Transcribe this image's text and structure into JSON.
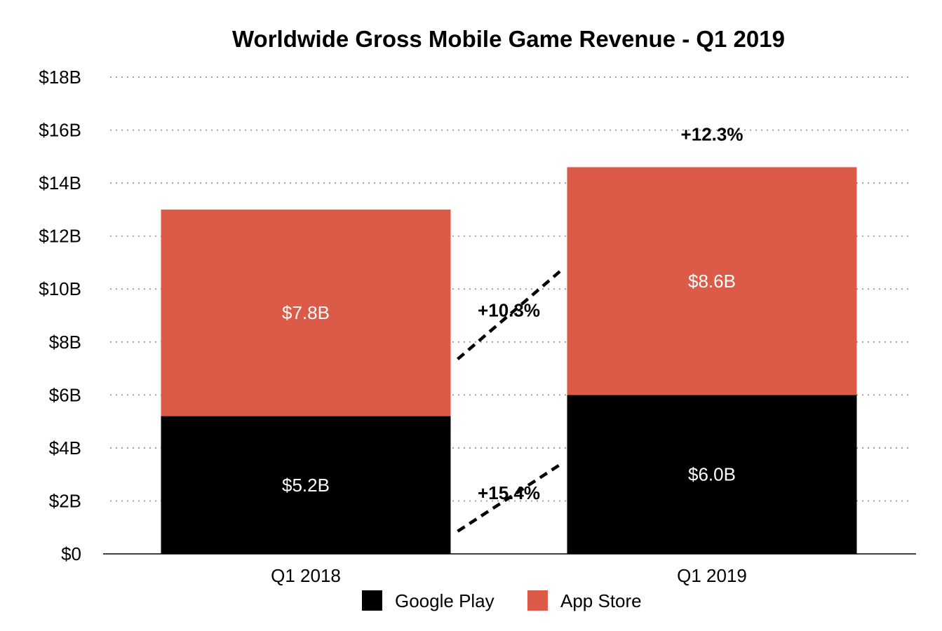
{
  "chart_data": {
    "type": "bar",
    "stacked": true,
    "title": "Worldwide Gross Mobile Game Revenue - Q1 2019",
    "xlabel": "",
    "ylabel": "",
    "categories": [
      "Q1 2018",
      "Q1 2019"
    ],
    "series": [
      {
        "name": "Google Play",
        "color": "#000000",
        "values": [
          5.2,
          6.0
        ],
        "labels": [
          "$5.2B",
          "$6.0B"
        ]
      },
      {
        "name": "App Store",
        "color": "#db5a48",
        "values": [
          7.8,
          8.6
        ],
        "labels": [
          "$7.8B",
          "$8.6B"
        ]
      }
    ],
    "ylim": [
      0,
      18
    ],
    "yticks": [
      0,
      2,
      4,
      6,
      8,
      10,
      12,
      14,
      16,
      18
    ],
    "ytick_labels": [
      "$0",
      "$2B",
      "$4B",
      "$6B",
      "$8B",
      "$10B",
      "$12B",
      "$14B",
      "$16B",
      "$18B"
    ],
    "grid": true,
    "grid_style": "dotted",
    "legend_position": "bottom-center",
    "annotations": {
      "total_growth": {
        "text": "+12.3%",
        "category": "Q1 2019"
      },
      "series_growth": [
        {
          "series": "App Store",
          "text": "+10.3%"
        },
        {
          "series": "Google Play",
          "text": "+15.4%"
        }
      ]
    }
  }
}
